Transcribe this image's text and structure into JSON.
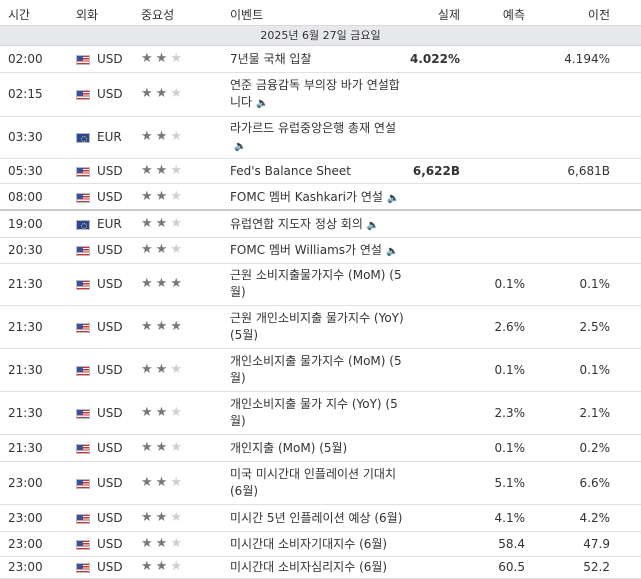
{
  "header": {
    "time": "시간",
    "currency": "외화",
    "importance": "중요성",
    "event": "이벤트",
    "actual": "실제",
    "forecast": "예측",
    "previous": "이전"
  },
  "date_band": "2025년 6월 27일 금요일",
  "rows": [
    {
      "time": "02:00",
      "flag": "us",
      "currency": "USD",
      "stars": 2,
      "event": "7년물 국채 입찰",
      "sound": false,
      "actual": "4.022%",
      "forecast": "",
      "previous": "4.194%"
    },
    {
      "time": "02:15",
      "flag": "us",
      "currency": "USD",
      "stars": 2,
      "event": "연준 금융감독 부의장 바가 연설합니다",
      "sound": true,
      "actual": "",
      "forecast": "",
      "previous": ""
    },
    {
      "time": "03:30",
      "flag": "eu",
      "currency": "EUR",
      "stars": 2,
      "event": "라가르드 유럽중앙은행 총재 연설",
      "sound": true,
      "actual": "",
      "forecast": "",
      "previous": ""
    },
    {
      "time": "05:30",
      "flag": "us",
      "currency": "USD",
      "stars": 2,
      "event": "Fed's Balance Sheet",
      "sound": false,
      "actual": "6,622B",
      "forecast": "",
      "previous": "6,681B"
    },
    {
      "time": "08:00",
      "flag": "us",
      "currency": "USD",
      "stars": 2,
      "event": "FOMC 멤버 Kashkari가 연설",
      "sound": true,
      "actual": "",
      "forecast": "",
      "previous": ""
    },
    {
      "time": "19:00",
      "flag": "eu",
      "currency": "EUR",
      "stars": 2,
      "event": "유럽연합 지도자 정상 회의",
      "sound": true,
      "actual": "",
      "forecast": "",
      "previous": ""
    },
    {
      "time": "20:30",
      "flag": "us",
      "currency": "USD",
      "stars": 2,
      "event": "FOMC 멤버 Williams가 연설",
      "sound": true,
      "actual": "",
      "forecast": "",
      "previous": ""
    },
    {
      "time": "21:30",
      "flag": "us",
      "currency": "USD",
      "stars": 3,
      "event": "근원 소비지출물가지수 (MoM) (5월)",
      "sound": false,
      "actual": "",
      "forecast": "0.1%",
      "previous": "0.1%"
    },
    {
      "time": "21:30",
      "flag": "us",
      "currency": "USD",
      "stars": 3,
      "event": "근원 개인소비지출 물가지수 (YoY) (5월)",
      "sound": false,
      "actual": "",
      "forecast": "2.6%",
      "previous": "2.5%"
    },
    {
      "time": "21:30",
      "flag": "us",
      "currency": "USD",
      "stars": 2,
      "event": "개인소비지출 물가지수 (MoM) (5월)",
      "sound": false,
      "actual": "",
      "forecast": "0.1%",
      "previous": "0.1%"
    },
    {
      "time": "21:30",
      "flag": "us",
      "currency": "USD",
      "stars": 2,
      "event": "개인소비지출 물가 지수 (YoY) (5월)",
      "sound": false,
      "actual": "",
      "forecast": "2.3%",
      "previous": "2.1%"
    },
    {
      "time": "21:30",
      "flag": "us",
      "currency": "USD",
      "stars": 2,
      "event": "개인지출 (MoM) (5월)",
      "sound": false,
      "actual": "",
      "forecast": "0.1%",
      "previous": "0.2%"
    },
    {
      "time": "23:00",
      "flag": "us",
      "currency": "USD",
      "stars": 2,
      "event": "미국 미시간대 인플레이션 기대치 (6월)",
      "sound": false,
      "actual": "",
      "forecast": "5.1%",
      "previous": "6.6%"
    },
    {
      "time": "23:00",
      "flag": "us",
      "currency": "USD",
      "stars": 2,
      "event": "미시간 5년 인플레이션 예상 (6월)",
      "sound": false,
      "actual": "",
      "forecast": "4.1%",
      "previous": "4.2%"
    },
    {
      "time": "23:00",
      "flag": "us",
      "currency": "USD",
      "stars": 2,
      "event": "미시간대 소비자기대지수 (6월)",
      "sound": false,
      "actual": "",
      "forecast": "58.4",
      "previous": "47.9"
    },
    {
      "time": "23:00",
      "flag": "us",
      "currency": "USD",
      "stars": 2,
      "event": "미시간대 소비자심리지수 (6월)",
      "sound": false,
      "actual": "",
      "forecast": "60.5",
      "previous": "52.2"
    }
  ]
}
